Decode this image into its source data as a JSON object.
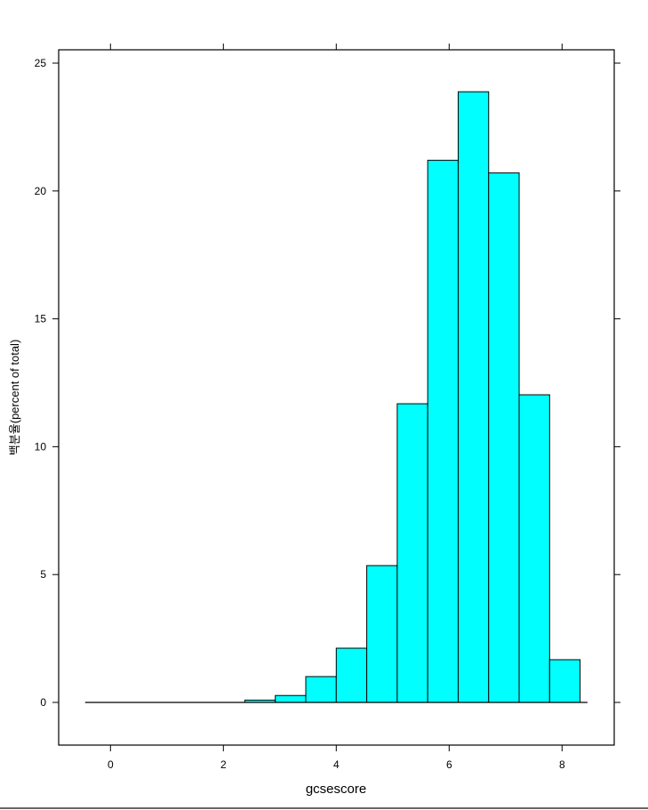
{
  "chart_data": {
    "type": "bar",
    "subtype": "histogram",
    "xlabel": "gcsescore",
    "ylabel": "백분율(percent of total)",
    "xlim": [
      -0.95,
      8.95
    ],
    "ylim": [
      -1.6,
      25.6
    ],
    "x_ticks": [
      0,
      2,
      4,
      6,
      8
    ],
    "y_ticks": [
      0,
      5,
      10,
      15,
      20,
      25
    ],
    "breaks": [
      -0.32,
      0.22,
      0.76,
      1.3,
      1.84,
      2.38,
      2.92,
      3.46,
      4.0,
      4.54,
      5.08,
      5.62,
      6.16,
      6.7,
      7.24,
      7.78,
      8.32
    ],
    "values": [
      0,
      0,
      0,
      0,
      0,
      0.09,
      0.27,
      1.01,
      2.12,
      5.35,
      11.68,
      21.2,
      23.88,
      20.71,
      12.03,
      1.67
    ],
    "baseline_range": [
      -0.45,
      8.45
    ],
    "bar_color": "#00FFFF",
    "edge_color": "#000000",
    "grid": false
  }
}
